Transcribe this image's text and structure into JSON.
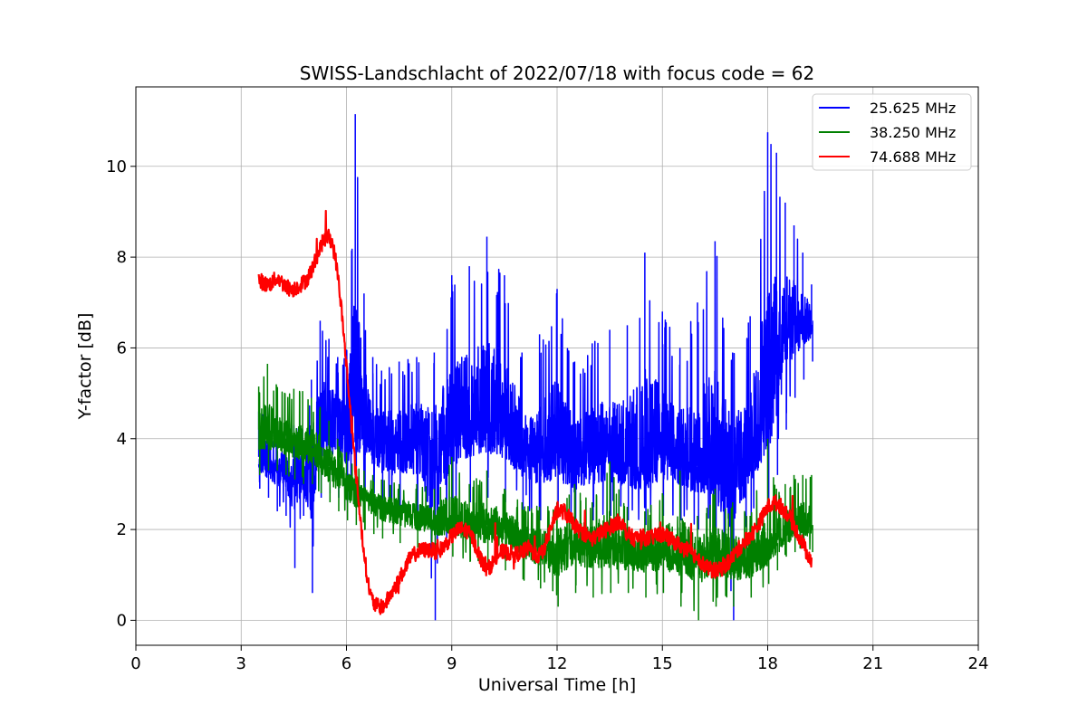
{
  "chart_data": {
    "type": "line",
    "title": "SWISS-Landschlacht of 2022/07/18 with focus code = 62",
    "xlabel": "Universal Time [h]",
    "ylabel": "Y-factor [dB]",
    "xlim": [
      0,
      24
    ],
    "ylim": [
      -0.55,
      11.75
    ],
    "xticks": [
      0,
      3,
      6,
      9,
      12,
      15,
      18,
      21,
      24
    ],
    "yticks": [
      0,
      2,
      4,
      6,
      8,
      10
    ],
    "grid": true,
    "legend_position": "top-right",
    "x_range_of_data": [
      3.5,
      19.25
    ],
    "series": [
      {
        "name": "25.625 MHz",
        "color": "#0000ff",
        "x": [
          3.5,
          3.75,
          4.0,
          4.25,
          4.5,
          4.75,
          5.0,
          5.25,
          5.5,
          5.75,
          6.0,
          6.25,
          6.5,
          6.75,
          7.0,
          7.5,
          8.0,
          8.5,
          9.0,
          9.5,
          10.0,
          10.5,
          11.0,
          11.5,
          12.0,
          12.5,
          13.0,
          13.5,
          14.0,
          14.5,
          15.0,
          15.5,
          16.0,
          16.5,
          17.0,
          17.5,
          18.0,
          18.25,
          18.5,
          18.75,
          19.0,
          19.25
        ],
        "y": [
          3.6,
          3.5,
          3.4,
          3.3,
          3.3,
          3.2,
          3.3,
          4.2,
          4.4,
          4.3,
          4.1,
          4.4,
          4.3,
          4.0,
          3.9,
          3.9,
          4.0,
          3.7,
          4.1,
          4.4,
          4.5,
          4.3,
          3.8,
          3.6,
          3.8,
          3.4,
          3.6,
          3.7,
          3.5,
          3.5,
          3.8,
          3.6,
          3.4,
          3.3,
          3.2,
          3.7,
          4.5,
          5.5,
          6.3,
          6.5,
          6.6,
          6.6
        ],
        "max": [
          4.6,
          4.7,
          4.5,
          4.3,
          4.3,
          4.2,
          5.3,
          6.6,
          6.2,
          5.8,
          5.9,
          11.15,
          7.2,
          5.8,
          5.5,
          5.7,
          5.8,
          5.9,
          7.6,
          7.8,
          8.45,
          7.6,
          5.9,
          6.3,
          7.3,
          5.7,
          6.1,
          6.4,
          6.5,
          8.1,
          6.8,
          6.0,
          7.0,
          8.35,
          5.9,
          6.7,
          10.75,
          10.3,
          9.2,
          8.7,
          8.1,
          7.4
        ],
        "min": [
          2.9,
          2.7,
          2.4,
          2.3,
          1.15,
          2.3,
          0.6,
          2.7,
          2.8,
          2.7,
          2.6,
          2.8,
          2.7,
          2.5,
          2.4,
          2.3,
          2.3,
          0.0,
          2.5,
          2.6,
          2.7,
          2.6,
          2.4,
          2.2,
          2.3,
          2.1,
          2.2,
          2.3,
          2.2,
          2.1,
          2.3,
          2.2,
          2.0,
          1.9,
          0.0,
          2.2,
          2.6,
          3.2,
          4.2,
          4.9,
          5.3,
          5.7
        ]
      },
      {
        "name": "38.250 MHz",
        "color": "#008000",
        "x": [
          3.5,
          3.75,
          4.0,
          4.25,
          4.5,
          4.75,
          5.0,
          5.25,
          5.5,
          5.75,
          6.0,
          6.25,
          6.5,
          6.75,
          7.0,
          7.5,
          8.0,
          8.5,
          9.0,
          9.5,
          10.0,
          10.5,
          11.0,
          11.5,
          12.0,
          12.5,
          13.0,
          13.5,
          14.0,
          14.5,
          15.0,
          15.5,
          16.0,
          16.5,
          17.0,
          17.5,
          18.0,
          18.25,
          18.5,
          18.75,
          19.0,
          19.25
        ],
        "y": [
          4.2,
          4.15,
          4.1,
          4.0,
          3.95,
          3.9,
          3.8,
          3.6,
          3.4,
          3.2,
          3.0,
          2.8,
          2.7,
          2.6,
          2.5,
          2.4,
          2.3,
          2.2,
          2.2,
          2.2,
          2.1,
          2.0,
          1.8,
          1.6,
          1.5,
          1.6,
          1.7,
          1.6,
          1.5,
          1.5,
          1.5,
          1.5,
          1.4,
          1.4,
          1.3,
          1.3,
          1.5,
          1.7,
          1.9,
          2.0,
          2.1,
          2.1
        ],
        "max": [
          5.15,
          5.65,
          5.2,
          5.0,
          5.1,
          5.05,
          4.9,
          4.7,
          4.4,
          4.0,
          3.7,
          3.5,
          3.3,
          3.2,
          3.1,
          3.0,
          3.0,
          2.9,
          3.6,
          3.0,
          3.3,
          2.9,
          2.6,
          2.5,
          2.6,
          3.0,
          2.6,
          3.5,
          2.5,
          2.4,
          2.8,
          3.3,
          2.3,
          2.9,
          2.6,
          2.3,
          4.0,
          2.9,
          3.0,
          3.2,
          3.2,
          3.2
        ],
        "min": [
          3.2,
          3.3,
          3.3,
          3.2,
          3.1,
          3.0,
          3.0,
          2.8,
          2.6,
          2.4,
          2.2,
          2.1,
          2.0,
          1.9,
          1.8,
          1.7,
          1.6,
          1.5,
          1.4,
          1.3,
          1.2,
          1.1,
          0.9,
          0.7,
          0.3,
          0.6,
          0.5,
          0.6,
          0.6,
          0.5,
          0.6,
          0.3,
          0.0,
          0.3,
          0.3,
          0.5,
          0.8,
          1.1,
          1.4,
          1.5,
          1.6,
          1.5
        ]
      },
      {
        "name": "74.688 MHz",
        "color": "#ff0000",
        "x": [
          3.5,
          3.6,
          3.7,
          3.8,
          3.9,
          4.0,
          4.1,
          4.2,
          4.3,
          4.4,
          4.5,
          4.6,
          4.7,
          4.8,
          4.9,
          5.0,
          5.1,
          5.2,
          5.3,
          5.4,
          5.5,
          5.6,
          5.7,
          5.8,
          5.9,
          6.0,
          6.1,
          6.2,
          6.3,
          6.4,
          6.5,
          6.6,
          6.7,
          6.8,
          6.9,
          7.0,
          7.1,
          7.2,
          7.4,
          7.6,
          7.8,
          8.0,
          8.2,
          8.4,
          8.6,
          8.8,
          9.0,
          9.2,
          9.4,
          9.6,
          9.8,
          10.0,
          10.2,
          10.4,
          10.6,
          10.8,
          11.0,
          11.2,
          11.4,
          11.6,
          11.8,
          12.0,
          12.2,
          12.4,
          12.6,
          12.8,
          13.0,
          13.2,
          13.4,
          13.6,
          13.8,
          14.0,
          14.2,
          14.4,
          14.6,
          14.8,
          15.0,
          15.2,
          15.4,
          15.6,
          15.8,
          16.0,
          16.2,
          16.4,
          16.6,
          16.8,
          17.0,
          17.2,
          17.4,
          17.6,
          17.8,
          18.0,
          18.2,
          18.4,
          18.6,
          18.8,
          19.0,
          19.1,
          19.2,
          19.25
        ],
        "y": [
          7.5,
          7.45,
          7.4,
          7.4,
          7.45,
          7.55,
          7.5,
          7.4,
          7.35,
          7.3,
          7.3,
          7.35,
          7.4,
          7.45,
          7.55,
          7.7,
          7.9,
          8.1,
          8.3,
          8.4,
          8.45,
          8.3,
          7.9,
          7.3,
          6.5,
          5.6,
          4.7,
          3.8,
          3.0,
          2.2,
          1.5,
          0.9,
          0.5,
          0.35,
          0.3,
          0.3,
          0.35,
          0.5,
          0.75,
          1.05,
          1.35,
          1.5,
          1.55,
          1.55,
          1.5,
          1.65,
          1.85,
          2.0,
          2.0,
          1.8,
          1.4,
          1.1,
          1.3,
          1.5,
          1.5,
          1.45,
          1.5,
          1.6,
          1.4,
          1.5,
          2.0,
          2.4,
          2.4,
          2.2,
          2.0,
          1.9,
          1.8,
          1.9,
          2.0,
          2.1,
          2.2,
          1.9,
          1.8,
          1.85,
          1.8,
          1.85,
          1.9,
          1.8,
          1.7,
          1.6,
          1.5,
          1.4,
          1.2,
          1.1,
          1.1,
          1.2,
          1.4,
          1.6,
          1.8,
          1.95,
          2.2,
          2.5,
          2.6,
          2.5,
          2.3,
          2.0,
          1.7,
          1.5,
          1.4,
          1.3
        ]
      }
    ]
  }
}
